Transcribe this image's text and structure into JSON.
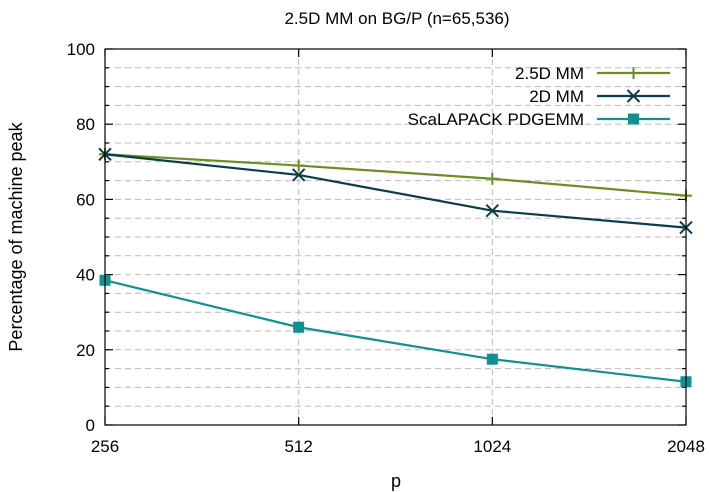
{
  "chart_data": {
    "type": "line",
    "title": "2.5D MM on BG/P (n=65,536)",
    "xlabel": "p",
    "ylabel": "Percentage of machine peak",
    "x_scale": "log2",
    "x": [
      256,
      512,
      1024,
      2048
    ],
    "x_tick_labels": [
      "256",
      "512",
      "1024",
      "2048"
    ],
    "ylim": [
      0,
      100
    ],
    "y_ticks": [
      0,
      20,
      40,
      60,
      80,
      100
    ],
    "grid": true,
    "legend_position": "top-right",
    "series": [
      {
        "name": "2.5D MM",
        "values": [
          72,
          69,
          65.5,
          61
        ],
        "color": "#6b8e23",
        "marker": "plus"
      },
      {
        "name": "2D MM",
        "values": [
          72,
          66.5,
          57,
          52.5
        ],
        "color": "#0b3c49",
        "marker": "cross"
      },
      {
        "name": "ScaLAPACK PDGEMM",
        "values": [
          38.5,
          26,
          17.5,
          11.5
        ],
        "color": "#10908f",
        "marker": "square"
      }
    ]
  }
}
